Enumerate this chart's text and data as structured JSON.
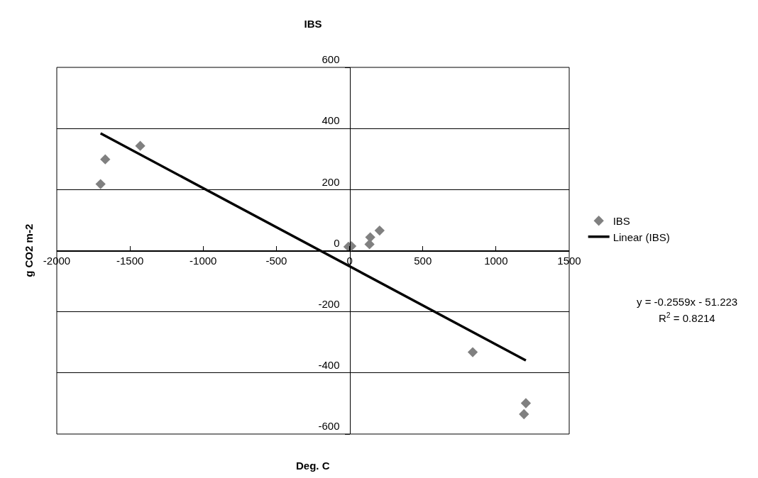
{
  "chart_data": {
    "type": "scatter",
    "title": "IBS",
    "xlabel": "Deg. C",
    "ylabel": "g CO2 m-2",
    "xlim": [
      -2000,
      1500
    ],
    "xticks": [
      -2000,
      -1500,
      -1000,
      -500,
      0,
      500,
      1000,
      1500
    ],
    "ylim": [
      -600,
      600
    ],
    "yticks": [
      -600,
      -400,
      -200,
      0,
      200,
      400,
      600
    ],
    "grid": "y",
    "legend": "right",
    "series": [
      {
        "name": "IBS",
        "color": "#808080",
        "marker": "diamond",
        "x": [
          -1701,
          -1669,
          -1430,
          -8,
          12,
          141,
          136,
          205,
          841,
          1204,
          1191
        ],
        "values": [
          218,
          299,
          343,
          13,
          15,
          44,
          21,
          66,
          -332,
          -499,
          -535
        ]
      },
      {
        "name": "Linear (IBS)",
        "color": "#000000",
        "type": "line",
        "marker": "none",
        "line_style": "solid",
        "x": [
          -1701,
          1204
        ],
        "values": [
          384,
          -359
        ]
      }
    ],
    "annotations": [
      "y = -0.2559x - 51.223",
      "R$^{2}$ = 0.8214"
    ]
  }
}
